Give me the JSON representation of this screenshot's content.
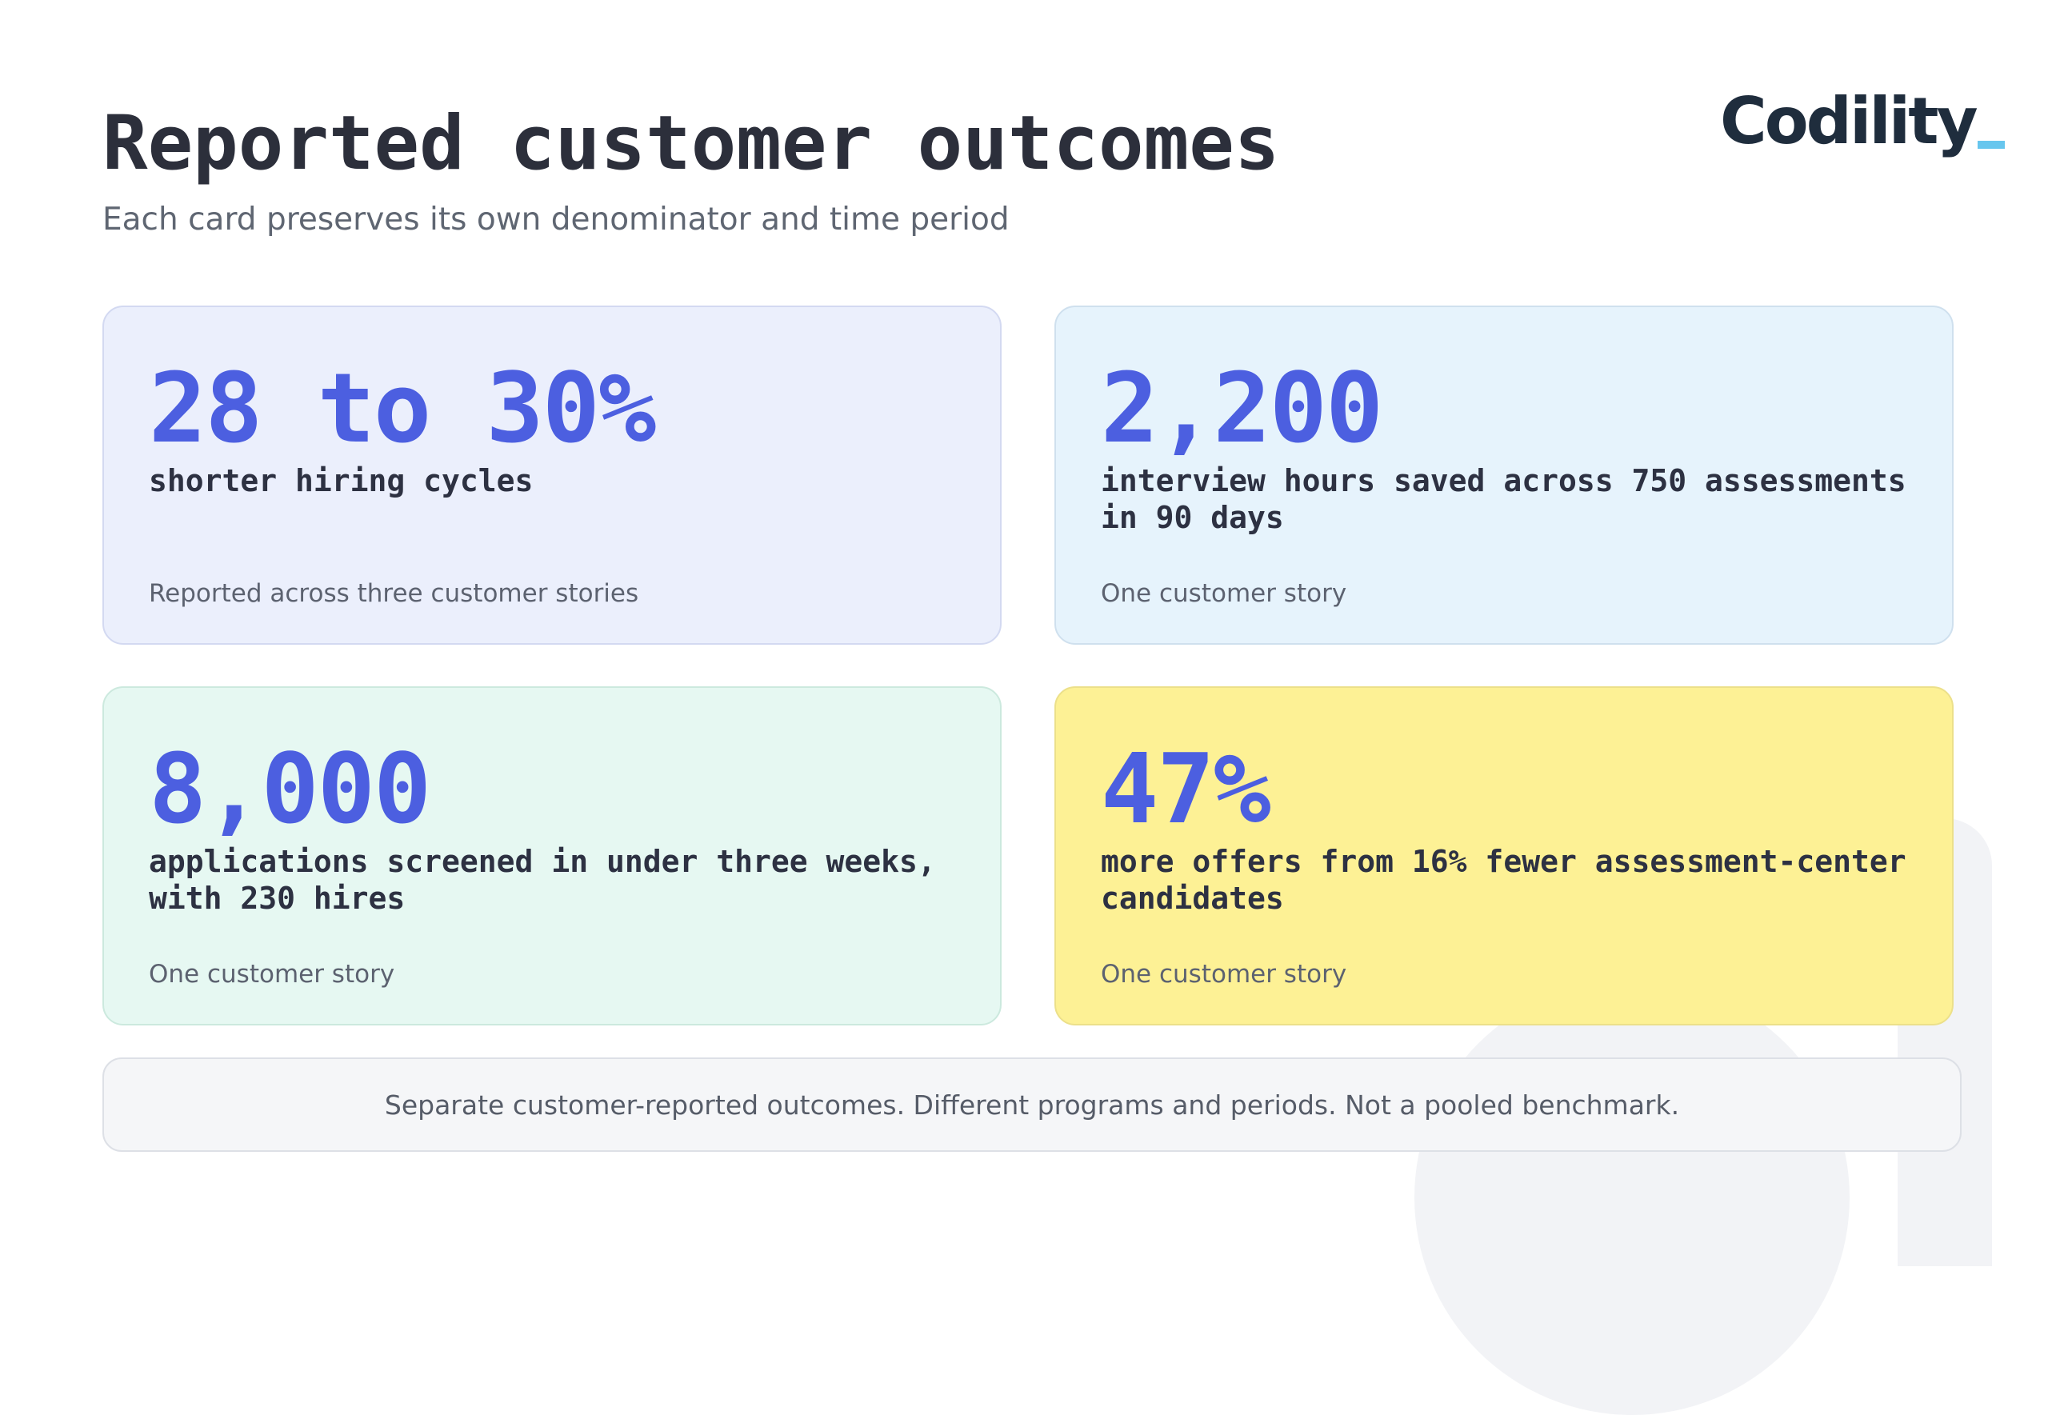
{
  "brand": {
    "logo_text": "Codility",
    "accent_color": "#67c6ee"
  },
  "header": {
    "title": "Reported customer outcomes",
    "subtitle": "Each card preserves its own denominator and time period"
  },
  "cards": [
    {
      "metric": "28 to 30%",
      "description": "shorter hiring cycles",
      "source": "Reported across three customer stories",
      "background": "#ebeffc"
    },
    {
      "metric": "2,200",
      "description": "interview hours saved across 750 assessments in 90 days",
      "source": "One customer story",
      "background": "#e6f3fc"
    },
    {
      "metric": "8,000",
      "description": "applications screened in under three weeks, with 230 hires",
      "source": "One customer story",
      "background": "#e6f8f2"
    },
    {
      "metric": "47%",
      "description": "more offers from 16% fewer assessment-center candidates",
      "source": "One customer story",
      "background": "#fdf195"
    }
  ],
  "footer": {
    "note": "Separate customer-reported outcomes. Different programs and periods. Not a pooled benchmark."
  },
  "colors": {
    "metric": "#4c5fe0",
    "title": "#2c2f3b"
  }
}
